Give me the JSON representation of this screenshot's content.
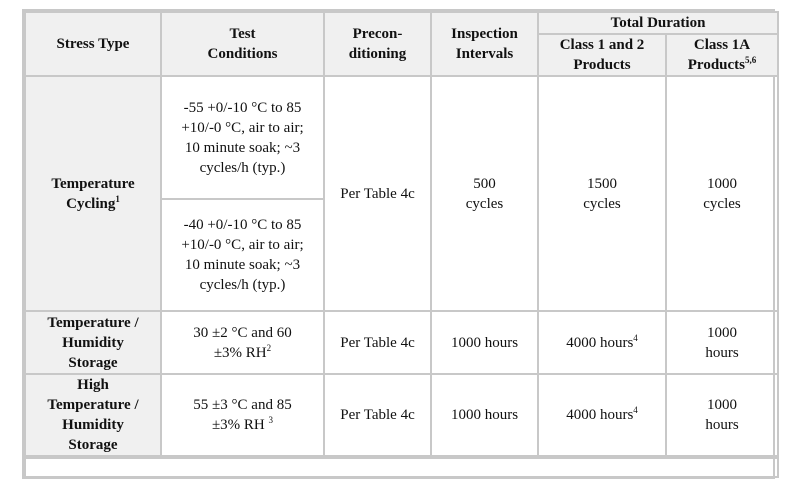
{
  "table": {
    "header": {
      "stress_type": "Stress Type",
      "test_conditions": "Test Conditions",
      "preconditioning": "Precon-ditioning",
      "inspection_intervals": "Inspection Intervals",
      "total_duration": "Total Duration",
      "class12": "Class 1 and 2 Products",
      "class1a": "Class 1A Products",
      "class1a_sup": "5,6"
    },
    "rows": [
      {
        "stress_type": "Temperature Cycling",
        "stress_sup": "1",
        "conditions": [
          "-55 +0/-10 °C to 85 +10/-0 °C, air to air; 10 minute soak; ~3 cycles/h (typ.)",
          "-40 +0/-10 °C to 85 +10/-0 °C, air to air; 10 minute soak; ~3 cycles/h (typ.)"
        ],
        "preconditioning": "Per Table 4c",
        "inspection": "500 cycles",
        "class12": "1500 cycles",
        "class12_sup": "",
        "class1a": "1000 cycles"
      },
      {
        "stress_type": "Temperature / Humidity Storage",
        "stress_sup": "",
        "conditions": [
          "30 ±2 °C and 60 ±3% RH"
        ],
        "cond_sup": "2",
        "preconditioning": "Per Table 4c",
        "inspection": "1000 hours",
        "class12": "4000 hours",
        "class12_sup": "4",
        "class1a": "1000 hours"
      },
      {
        "stress_type": "High Temperature / Humidity Storage",
        "stress_sup": "",
        "conditions": [
          "55 ±3 °C and 85 ±3% RH "
        ],
        "cond_sup": "3",
        "preconditioning": "Per Table 4c",
        "inspection": "1000 hours",
        "class12": "4000 hours",
        "class12_sup": "4",
        "class1a": "1000 hours"
      }
    ]
  }
}
